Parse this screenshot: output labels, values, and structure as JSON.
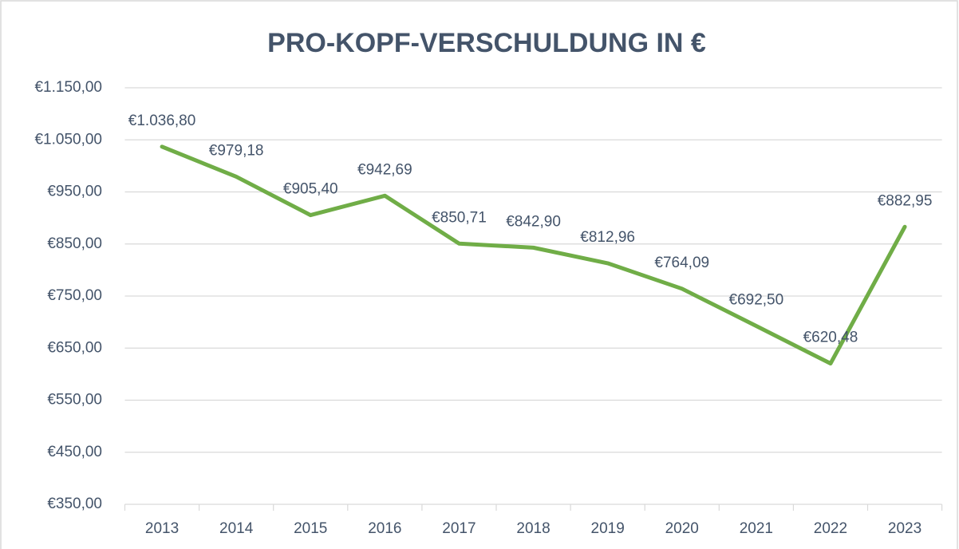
{
  "chart_data": {
    "type": "line",
    "title": "PRO-KOPF-VERSCHULDUNG IN €",
    "categories": [
      "2013",
      "2014",
      "2015",
      "2016",
      "2017",
      "2018",
      "2019",
      "2020",
      "2021",
      "2022",
      "2023"
    ],
    "values": [
      1036.8,
      979.18,
      905.4,
      942.69,
      850.71,
      842.9,
      812.96,
      764.09,
      692.5,
      620.48,
      882.95
    ],
    "value_labels": [
      "€1.036,80",
      "€979,18",
      "€905,40",
      "€942,69",
      "€850,71",
      "€842,90",
      "€812,96",
      "€764,09",
      "€692,50",
      "€620,48",
      "€882,95"
    ],
    "color": "#70ad47",
    "ylim": [
      350,
      1150
    ],
    "yticks": [
      {
        "value": 350,
        "label": "€350,00"
      },
      {
        "value": 450,
        "label": "€450,00"
      },
      {
        "value": 550,
        "label": "€550,00"
      },
      {
        "value": 650,
        "label": "€650,00"
      },
      {
        "value": 750,
        "label": "€750,00"
      },
      {
        "value": 850,
        "label": "€850,00"
      },
      {
        "value": 950,
        "label": "€950,00"
      },
      {
        "value": 1050,
        "label": "€1.050,00"
      },
      {
        "value": 1150,
        "label": "€1.150,00"
      }
    ],
    "grid": true
  }
}
